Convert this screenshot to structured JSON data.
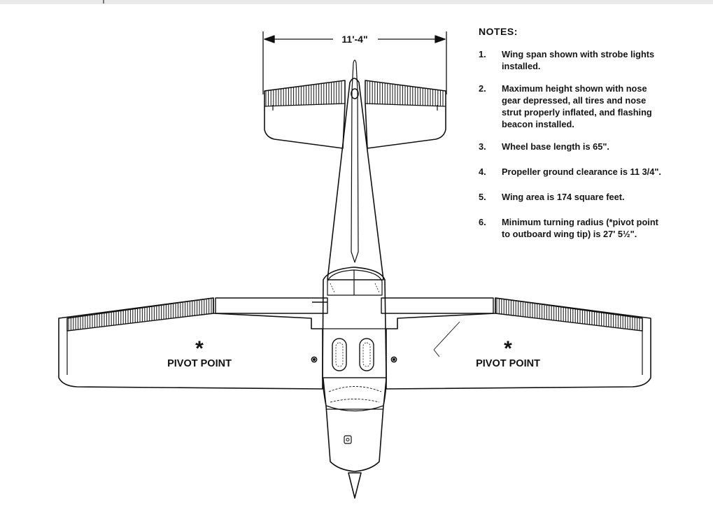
{
  "dimension": {
    "label": "11'-4\""
  },
  "pivot_points": [
    {
      "symbol": "*",
      "label": "PIVOT POINT"
    },
    {
      "symbol": "*",
      "label": "PIVOT POINT"
    }
  ],
  "notes": {
    "title": "NOTES:",
    "items": [
      {
        "num": "1.",
        "text": "Wing span shown with strobe lights\ninstalled."
      },
      {
        "num": "2.",
        "text": "Maximum height shown with nose\ngear depressed, all tires and nose\nstrut properly inflated, and flashing\nbeacon installed."
      },
      {
        "num": "3.",
        "text": "Wheel base length is 65\"."
      },
      {
        "num": "4.",
        "text": "Propeller ground clearance is 11 3/4\"."
      },
      {
        "num": "5.",
        "text": "Wing area is 174 square feet."
      },
      {
        "num": "6.",
        "text": "Minimum turning radius (*pivot point\nto outboard wing tip) is 27' 5½\"."
      }
    ]
  },
  "colors": {
    "ink": "#111111",
    "background": "#ffffff"
  }
}
